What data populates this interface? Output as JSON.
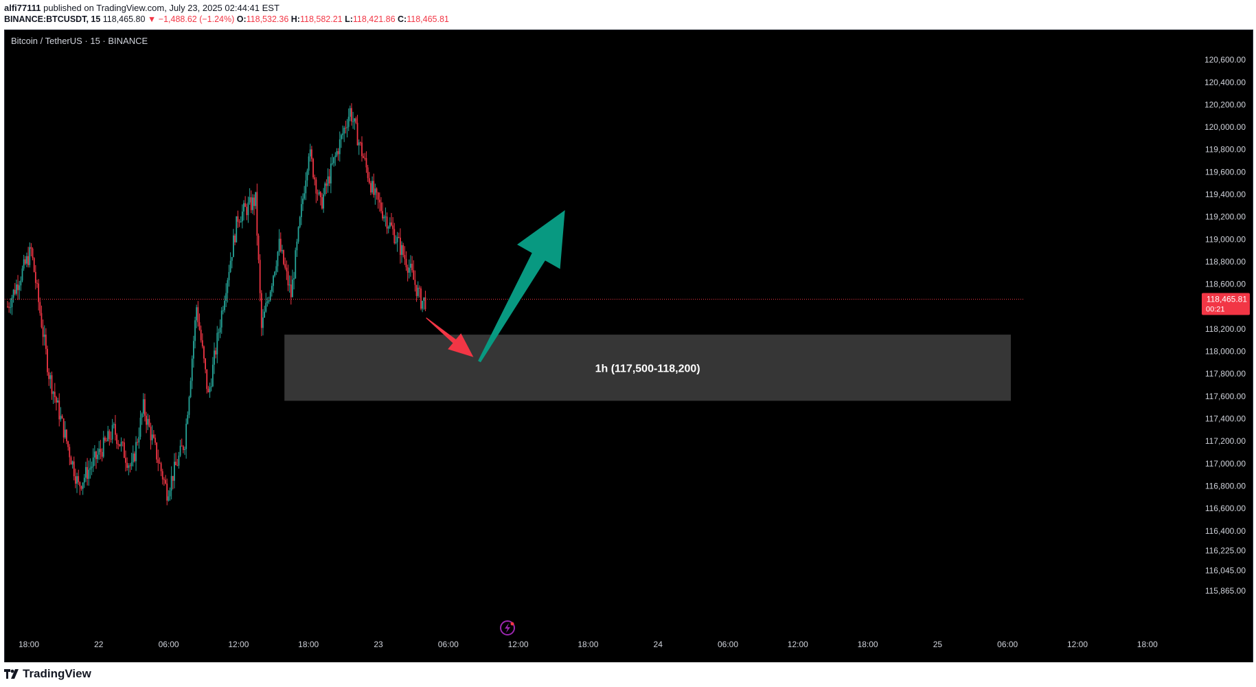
{
  "header": {
    "author": "alfi77111",
    "published_text": "published on TradingView.com, July 23, 2025 02:44:41 EST",
    "symbol": "BINANCE:BTCUSDT, 15",
    "last": "118,465.80",
    "change": "−1,488.62 (−1.24%)",
    "o_label": "O:",
    "o_value": "118,532.36",
    "h_label": "H:",
    "h_value": "118,582.21",
    "l_label": "L:",
    "l_value": "118,421.86",
    "c_label": "C:",
    "c_value": "118,465.81"
  },
  "footer": {
    "brand": "TradingView"
  },
  "colors": {
    "up": "#26a69a",
    "down": "#f23645",
    "zone_fill": "#363636",
    "arrow_up": "#089981",
    "arrow_down": "#f23645",
    "price_badge": "#f23645"
  },
  "chart_data": {
    "type": "candlestick",
    "title": "Bitcoin / TetherUS · 15 · BINANCE",
    "ylim": [
      115780,
      120760
    ],
    "y_ticks": [
      {
        "value": 120600,
        "label": "120,600.00"
      },
      {
        "value": 120400,
        "label": "120,400.00"
      },
      {
        "value": 120200,
        "label": "120,200.00"
      },
      {
        "value": 120000,
        "label": "120,000.00"
      },
      {
        "value": 119800,
        "label": "119,800.00"
      },
      {
        "value": 119600,
        "label": "119,600.00"
      },
      {
        "value": 119400,
        "label": "119,400.00"
      },
      {
        "value": 119200,
        "label": "119,200.00"
      },
      {
        "value": 119000,
        "label": "119,000.00"
      },
      {
        "value": 118800,
        "label": "118,800.00"
      },
      {
        "value": 118600,
        "label": "118,600.00"
      },
      {
        "value": 118200,
        "label": "118,200.00"
      },
      {
        "value": 118000,
        "label": "118,000.00"
      },
      {
        "value": 117800,
        "label": "117,800.00"
      },
      {
        "value": 117600,
        "label": "117,600.00"
      },
      {
        "value": 117400,
        "label": "117,400.00"
      },
      {
        "value": 117200,
        "label": "117,200.00"
      },
      {
        "value": 117000,
        "label": "117,000.00"
      },
      {
        "value": 116800,
        "label": "116,800.00"
      },
      {
        "value": 116600,
        "label": "116,600.00"
      },
      {
        "value": 116400,
        "label": "116,400.00"
      },
      {
        "value": 116225,
        "label": "116,225.00"
      },
      {
        "value": 116045,
        "label": "116,045.00"
      },
      {
        "value": 115865,
        "label": "115,865.00"
      }
    ],
    "x_ticks": [
      "18:00",
      "22",
      "06:00",
      "12:00",
      "18:00",
      "23",
      "06:00",
      "12:00",
      "18:00",
      "24",
      "06:00",
      "12:00",
      "18:00",
      "25",
      "06:00",
      "12:00",
      "18:00"
    ],
    "current_price": {
      "value": 118465.81,
      "label": "118,465.81",
      "countdown": "00:21"
    },
    "zone": {
      "label": "1h (117,500-118,200)",
      "low": 117560,
      "high": 118150,
      "start_bar": 47,
      "end_bar": 170
    },
    "arrows": [
      {
        "direction": "down",
        "from": [
          71,
          118300
        ],
        "to": [
          79,
          117950
        ]
      },
      {
        "direction": "up",
        "from": [
          80,
          117910
        ],
        "to": [
          94.5,
          119260
        ]
      }
    ],
    "anchors": [
      {
        "bar": 0,
        "price": 118400
      },
      {
        "bar": 4,
        "price": 118900
      },
      {
        "bar": 7,
        "price": 117800
      },
      {
        "bar": 12,
        "price": 116800
      },
      {
        "bar": 18,
        "price": 117300
      },
      {
        "bar": 21,
        "price": 116950
      },
      {
        "bar": 23,
        "price": 117500
      },
      {
        "bar": 27,
        "price": 116750
      },
      {
        "bar": 30,
        "price": 117200
      },
      {
        "bar": 32,
        "price": 118400
      },
      {
        "bar": 34,
        "price": 117600
      },
      {
        "bar": 37,
        "price": 118600
      },
      {
        "bar": 39,
        "price": 119200
      },
      {
        "bar": 42,
        "price": 119350
      },
      {
        "bar": 43,
        "price": 118200
      },
      {
        "bar": 46,
        "price": 118950
      },
      {
        "bar": 48,
        "price": 118500
      },
      {
        "bar": 51,
        "price": 119800
      },
      {
        "bar": 53,
        "price": 119300
      },
      {
        "bar": 55,
        "price": 119650
      },
      {
        "bar": 58,
        "price": 120150
      },
      {
        "bar": 62,
        "price": 119400
      },
      {
        "bar": 65,
        "price": 119100
      },
      {
        "bar": 68,
        "price": 118750
      },
      {
        "bar": 70,
        "price": 118450
      }
    ]
  }
}
